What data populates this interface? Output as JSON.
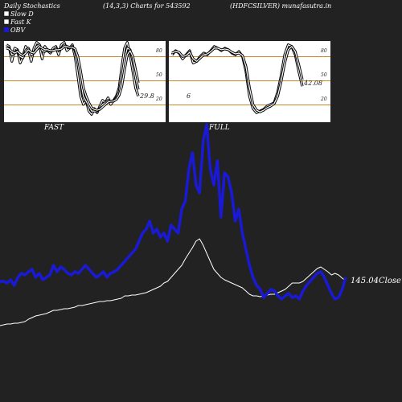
{
  "header": {
    "title": "Daily Stochastics",
    "params": "(14,3,3) Charts for 543592",
    "source": "(HDFCSILVER) munafasutra.in"
  },
  "legend": [
    {
      "label": "Slow  D",
      "color": "#ffffff"
    },
    {
      "label": "Fast K",
      "color": "#ffffff"
    },
    {
      "label": "OBV",
      "color": "#1a1ad6"
    }
  ],
  "colors": {
    "background": "#222222",
    "panel": "#ffffff",
    "level_line": "#c8862a",
    "obv": "#1a1ad6",
    "price": "#ffffff"
  },
  "chart_data": [
    {
      "type": "line",
      "title": "FAST",
      "ylim": [
        0,
        100
      ],
      "yticks": [
        20,
        50,
        80
      ],
      "levels": [
        20,
        50,
        80
      ],
      "last_value_label": "29.8",
      "series": [
        {
          "values": [
            92,
            90,
            72,
            88,
            86,
            70,
            78,
            90,
            86,
            72,
            88,
            95,
            92,
            75,
            90,
            85,
            82,
            88,
            90,
            80,
            92,
            95,
            85,
            88,
            92,
            78,
            55,
            30,
            20,
            25,
            12,
            8,
            15,
            10,
            18,
            25,
            22,
            28,
            20,
            25,
            30,
            40,
            65,
            88,
            95,
            80,
            60,
            40,
            30
          ]
        },
        {
          "values": [
            90,
            88,
            80,
            82,
            85,
            78,
            76,
            85,
            88,
            80,
            82,
            90,
            92,
            85,
            84,
            86,
            84,
            85,
            88,
            85,
            88,
            92,
            90,
            88,
            90,
            85,
            70,
            48,
            30,
            24,
            18,
            12,
            12,
            12,
            15,
            20,
            22,
            25,
            24,
            24,
            28,
            35,
            52,
            75,
            88,
            86,
            72,
            52,
            38
          ]
        },
        {
          "values": [
            88,
            87,
            84,
            82,
            84,
            81,
            79,
            82,
            86,
            83,
            82,
            86,
            90,
            88,
            86,
            86,
            85,
            85,
            86,
            86,
            87,
            90,
            90,
            89,
            89,
            87,
            78,
            60,
            40,
            30,
            22,
            16,
            14,
            13,
            14,
            17,
            20,
            23,
            24,
            24,
            26,
            31,
            42,
            62,
            80,
            85,
            78,
            62,
            46
          ]
        }
      ]
    },
    {
      "type": "line",
      "title": "FULL",
      "ylim": [
        0,
        100
      ],
      "yticks": [
        20,
        50,
        80
      ],
      "levels": [
        20,
        50,
        80
      ],
      "last_value_label": "42.08",
      "side_label": "6",
      "series": [
        {
          "values": [
            80,
            85,
            82,
            75,
            80,
            85,
            70,
            72,
            78,
            82,
            80,
            85,
            90,
            88,
            85,
            88,
            86,
            82,
            80,
            84,
            78,
            60,
            30,
            15,
            10,
            12,
            14,
            18,
            20,
            22,
            35,
            55,
            80,
            92,
            90,
            80,
            60,
            42
          ]
        },
        {
          "values": [
            82,
            84,
            83,
            78,
            79,
            83,
            75,
            72,
            76,
            80,
            81,
            84,
            88,
            88,
            86,
            87,
            86,
            83,
            81,
            82,
            79,
            66,
            40,
            20,
            13,
            11,
            13,
            16,
            18,
            21,
            30,
            48,
            70,
            86,
            90,
            84,
            68,
            50
          ]
        }
      ]
    },
    {
      "type": "line",
      "close_label": "145.04Close",
      "series": [
        {
          "name": "OBV",
          "values": [
            350,
            350,
            352,
            348,
            355,
            345,
            340,
            342,
            338,
            335,
            345,
            340,
            348,
            345,
            342,
            330,
            338,
            332,
            335,
            340,
            342,
            338,
            340,
            335,
            330,
            335,
            340,
            345,
            342,
            338,
            345,
            340,
            338,
            335,
            330,
            325,
            320,
            315,
            310,
            300,
            290,
            285,
            275,
            290,
            285,
            295,
            290,
            300,
            280,
            285,
            290,
            260,
            250,
            210,
            190,
            230,
            240,
            175,
            155,
            210,
            230,
            200,
            270,
            215,
            220,
            240,
            275,
            260,
            290,
            310,
            330,
            345,
            355,
            360,
            370,
            365,
            360,
            362,
            368,
            372,
            368,
            365,
            370,
            368,
            372,
            362,
            355,
            350,
            345,
            340,
            338,
            345,
            355,
            365,
            372,
            370,
            360,
            345
          ]
        },
        {
          "name": "price",
          "values": [
            405,
            404,
            403,
            403,
            402,
            402,
            401,
            400,
            397,
            395,
            393,
            392,
            391,
            390,
            388,
            386,
            386,
            385,
            384,
            384,
            383,
            382,
            380,
            380,
            379,
            378,
            377,
            376,
            375,
            375,
            374,
            374,
            373,
            372,
            371,
            368,
            368,
            367,
            367,
            366,
            365,
            364,
            362,
            360,
            358,
            356,
            352,
            350,
            345,
            340,
            335,
            330,
            322,
            315,
            308,
            300,
            297,
            305,
            315,
            325,
            335,
            340,
            345,
            348,
            350,
            352,
            354,
            356,
            358,
            362,
            366,
            368,
            368,
            369,
            368,
            367,
            366,
            366,
            364,
            362,
            360,
            356,
            352,
            352,
            352,
            350,
            346,
            342,
            338,
            334,
            332,
            335,
            338,
            342,
            340,
            342,
            346,
            349
          ]
        }
      ]
    }
  ]
}
